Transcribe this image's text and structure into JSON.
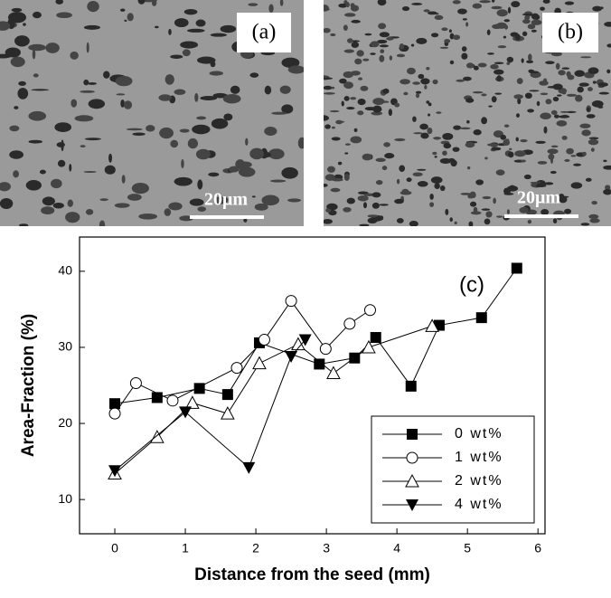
{
  "micrographs": [
    {
      "label": "(a)",
      "scale_bar": "20μm"
    },
    {
      "label": "(b)",
      "scale_bar": "20μm"
    }
  ],
  "chart_data": {
    "type": "line",
    "annotation": "(c)",
    "x_label": "Distance from the seed (mm)",
    "y_label": "Area-Fraction (%)",
    "xlim": [
      -0.5,
      6.1
    ],
    "ylim": [
      5.5,
      44.5
    ],
    "xticks": [
      0,
      1,
      2,
      3,
      4,
      5,
      6
    ],
    "yticks": [
      10,
      20,
      30,
      40
    ],
    "legend": "lower right",
    "series": [
      {
        "name": "0 wt%",
        "color": "#000000",
        "marker": "square",
        "x": [
          0,
          0.6,
          1.2,
          1.6,
          2.05,
          2.9,
          3.4,
          3.7,
          4.2,
          4.6,
          5.2,
          5.7
        ],
        "values": [
          22.6,
          23.4,
          24.6,
          23.8,
          30.6,
          27.8,
          28.6,
          31.3,
          24.9,
          32.9,
          33.9,
          40.4
        ]
      },
      {
        "name": "1 wt%",
        "color": "#000000",
        "marker": "circle",
        "x": [
          0,
          0.3,
          0.82,
          1.73,
          2.12,
          2.5,
          2.99,
          3.33,
          3.62
        ],
        "values": [
          21.3,
          25.3,
          23.0,
          27.3,
          31.0,
          36.1,
          29.8,
          33.1,
          34.9
        ]
      },
      {
        "name": "2 wt%",
        "color": "#000000",
        "marker": "triangle-up",
        "x": [
          0,
          0.6,
          1.1,
          1.6,
          2.05,
          2.6,
          3.1,
          3.6,
          4.5
        ],
        "values": [
          13.4,
          18.2,
          22.7,
          21.3,
          27.9,
          30.4,
          26.6,
          30.0,
          32.8
        ]
      },
      {
        "name": "4 wt%",
        "color": "#000000",
        "marker": "triangle-down",
        "x": [
          0,
          1.0,
          1.9,
          2.5,
          2.7
        ],
        "values": [
          13.8,
          21.5,
          14.2,
          28.8,
          31.0
        ]
      }
    ]
  }
}
